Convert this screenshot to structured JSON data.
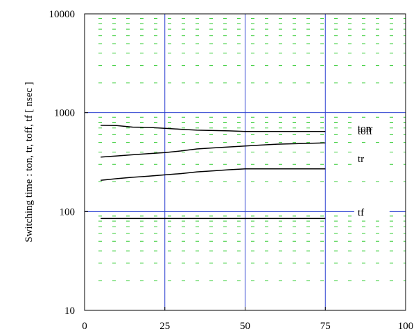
{
  "chart_data": {
    "type": "line",
    "ylabel": "Switching time  :  ton, tr, toff, tf  [ nsec ]",
    "xlabel": "",
    "x_scale": "linear",
    "y_scale": "log",
    "xlim": [
      0,
      100
    ],
    "ylim": [
      10,
      10000
    ],
    "x_ticks": [
      "0",
      "25",
      "50",
      "75",
      "100"
    ],
    "y_ticks": [
      "10",
      "100",
      "1000",
      "10000"
    ],
    "grid": {
      "major": true,
      "minor": true,
      "major_color": "#2a3fd0",
      "minor_color": "#33cc33"
    },
    "series": [
      {
        "name": "toff",
        "x": [
          5,
          10,
          15,
          20,
          25,
          30,
          35,
          40,
          45,
          50,
          55,
          60,
          65,
          70,
          75
        ],
        "y": [
          745,
          740,
          715,
          710,
          695,
          680,
          665,
          660,
          655,
          645,
          645,
          645,
          645,
          645,
          645
        ]
      },
      {
        "name": "ton",
        "x": [
          5,
          10,
          15,
          20,
          25,
          30,
          35,
          40,
          45,
          50,
          55,
          60,
          65,
          70,
          75
        ],
        "y": [
          355,
          365,
          375,
          385,
          395,
          410,
          430,
          440,
          450,
          460,
          470,
          480,
          485,
          490,
          495
        ]
      },
      {
        "name": "tr",
        "x": [
          5,
          10,
          15,
          20,
          25,
          30,
          35,
          40,
          45,
          50,
          55,
          60,
          65,
          70,
          75
        ],
        "y": [
          207,
          215,
          222,
          228,
          235,
          242,
          252,
          258,
          265,
          270,
          270,
          270,
          270,
          270,
          270
        ]
      },
      {
        "name": "tf",
        "x": [
          5,
          10,
          15,
          20,
          25,
          30,
          35,
          40,
          45,
          50,
          55,
          60,
          65,
          70,
          75
        ],
        "y": [
          85,
          85,
          85,
          85,
          85,
          85,
          85,
          85,
          85,
          85,
          85,
          85,
          85,
          85,
          85
        ]
      }
    ]
  }
}
